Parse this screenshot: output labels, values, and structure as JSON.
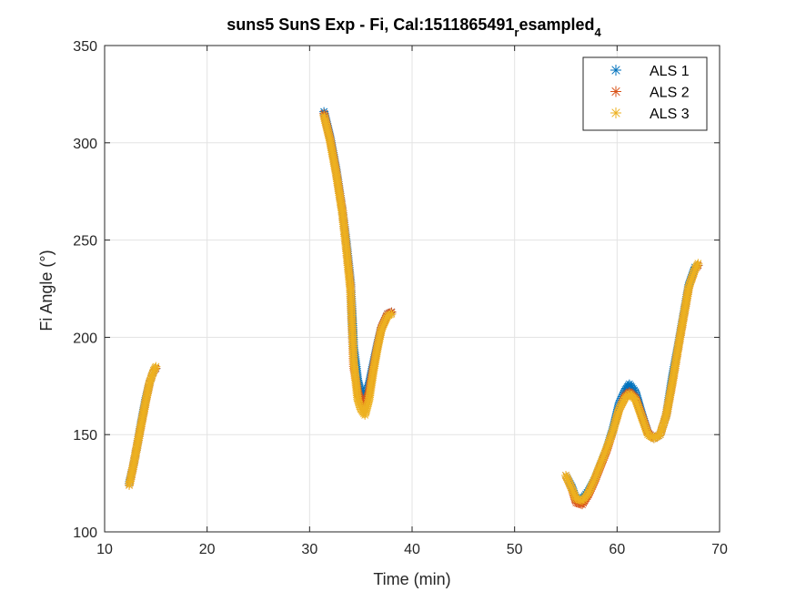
{
  "chart_data": {
    "type": "scatter",
    "title_main": "suns5 SunS Exp - Fi, Cal:1511865491",
    "title_sub1": "r",
    "title_mid": "esampled",
    "title_sub2": "4",
    "xlabel": "Time (min)",
    "ylabel": "Fi Angle (°)",
    "xlim": [
      10,
      70
    ],
    "ylim": [
      100,
      350
    ],
    "xticks": [
      10,
      20,
      30,
      40,
      50,
      60,
      70
    ],
    "yticks": [
      100,
      150,
      200,
      250,
      300,
      350
    ],
    "grid": true,
    "legend_position": "top-right",
    "marker": "asterisk",
    "series": [
      {
        "name": "ALS 1",
        "color": "#0072BD",
        "segments": [
          [
            [
              12.4,
              125
            ],
            [
              12.8,
              134
            ],
            [
              13.2,
              145
            ],
            [
              13.6,
              157
            ],
            [
              14.0,
              168
            ],
            [
              14.4,
              177
            ],
            [
              14.8,
              183
            ],
            [
              15.0,
              184
            ]
          ],
          [
            [
              31.4,
              316
            ],
            [
              32.0,
              303
            ],
            [
              32.6,
              286
            ],
            [
              33.2,
              265
            ],
            [
              33.6,
              248
            ],
            [
              34.0,
              228
            ],
            [
              34.3,
              195
            ],
            [
              34.7,
              178
            ],
            [
              35.0,
              172
            ],
            [
              35.4,
              170
            ],
            [
              35.8,
              176
            ],
            [
              36.2,
              186
            ],
            [
              36.6,
              196
            ],
            [
              37.0,
              205
            ],
            [
              37.6,
              212
            ],
            [
              38.0,
              213
            ]
          ],
          [
            [
              55.0,
              129
            ],
            [
              55.6,
              123
            ],
            [
              56.0,
              117
            ],
            [
              56.6,
              117
            ],
            [
              57.2,
              121
            ],
            [
              57.8,
              127
            ],
            [
              58.4,
              135
            ],
            [
              59.0,
              143
            ],
            [
              59.6,
              153
            ],
            [
              60.2,
              166
            ],
            [
              60.8,
              173
            ],
            [
              61.2,
              176
            ],
            [
              61.8,
              172
            ],
            [
              62.4,
              161
            ],
            [
              63.0,
              151
            ],
            [
              63.6,
              148
            ],
            [
              64.2,
              150
            ],
            [
              64.8,
              160
            ],
            [
              65.4,
              180
            ],
            [
              66.0,
              197
            ],
            [
              66.6,
              215
            ],
            [
              67.0,
              227
            ],
            [
              67.6,
              236
            ],
            [
              67.9,
              237
            ]
          ]
        ]
      },
      {
        "name": "ALS 2",
        "color": "#D95319",
        "segments": [
          [
            [
              12.4,
              124
            ],
            [
              12.8,
              134
            ],
            [
              13.2,
              145
            ],
            [
              13.6,
              156
            ],
            [
              14.0,
              167
            ],
            [
              14.4,
              177
            ],
            [
              14.8,
              183
            ],
            [
              15.0,
              184
            ]
          ],
          [
            [
              31.4,
              315
            ],
            [
              32.0,
              302
            ],
            [
              32.6,
              285
            ],
            [
              33.2,
              265
            ],
            [
              33.6,
              246
            ],
            [
              34.0,
              226
            ],
            [
              34.3,
              185
            ],
            [
              34.7,
              172
            ],
            [
              35.0,
              167
            ],
            [
              35.4,
              165
            ],
            [
              35.8,
              172
            ],
            [
              36.2,
              184
            ],
            [
              36.6,
              195
            ],
            [
              37.0,
              205
            ],
            [
              37.6,
              212
            ],
            [
              38.0,
              213
            ]
          ],
          [
            [
              55.0,
              129
            ],
            [
              55.6,
              122
            ],
            [
              56.0,
              115
            ],
            [
              56.6,
              114
            ],
            [
              57.2,
              119
            ],
            [
              57.8,
              126
            ],
            [
              58.4,
              134
            ],
            [
              59.0,
              142
            ],
            [
              59.6,
              152
            ],
            [
              60.2,
              163
            ],
            [
              60.8,
              170
            ],
            [
              61.2,
              172
            ],
            [
              61.8,
              169
            ],
            [
              62.4,
              160
            ],
            [
              63.0,
              151
            ],
            [
              63.6,
              148
            ],
            [
              64.2,
              150
            ],
            [
              64.8,
              160
            ],
            [
              65.4,
              177
            ],
            [
              66.0,
              196
            ],
            [
              66.6,
              214
            ],
            [
              67.0,
              226
            ],
            [
              67.6,
              235
            ],
            [
              67.9,
              237
            ]
          ]
        ]
      },
      {
        "name": "ALS 3",
        "color": "#EDB120",
        "segments": [
          [
            [
              12.4,
              124
            ],
            [
              12.8,
              134
            ],
            [
              13.2,
              145
            ],
            [
              13.6,
              156
            ],
            [
              14.0,
              167
            ],
            [
              14.4,
              177
            ],
            [
              14.8,
              183
            ],
            [
              15.0,
              185
            ]
          ],
          [
            [
              31.4,
              314
            ],
            [
              32.0,
              301
            ],
            [
              32.6,
              284
            ],
            [
              33.2,
              264
            ],
            [
              33.6,
              245
            ],
            [
              34.0,
              224
            ],
            [
              34.3,
              188
            ],
            [
              34.7,
              168
            ],
            [
              35.0,
              163
            ],
            [
              35.4,
              160
            ],
            [
              35.8,
              168
            ],
            [
              36.2,
              182
            ],
            [
              36.6,
              194
            ],
            [
              37.0,
              204
            ],
            [
              37.6,
              211
            ],
            [
              38.0,
              212
            ]
          ],
          [
            [
              55.0,
              129
            ],
            [
              55.6,
              122
            ],
            [
              56.0,
              117
            ],
            [
              56.6,
              116
            ],
            [
              57.2,
              120
            ],
            [
              57.8,
              127
            ],
            [
              58.4,
              135
            ],
            [
              59.0,
              143
            ],
            [
              59.6,
              152
            ],
            [
              60.2,
              163
            ],
            [
              60.8,
              169
            ],
            [
              61.2,
              171
            ],
            [
              61.8,
              168
            ],
            [
              62.4,
              159
            ],
            [
              63.0,
              150
            ],
            [
              63.6,
              148
            ],
            [
              64.2,
              150
            ],
            [
              64.8,
              160
            ],
            [
              65.4,
              177
            ],
            [
              66.0,
              196
            ],
            [
              66.6,
              214
            ],
            [
              67.0,
              226
            ],
            [
              67.6,
              235
            ],
            [
              67.9,
              238
            ]
          ]
        ]
      }
    ]
  }
}
